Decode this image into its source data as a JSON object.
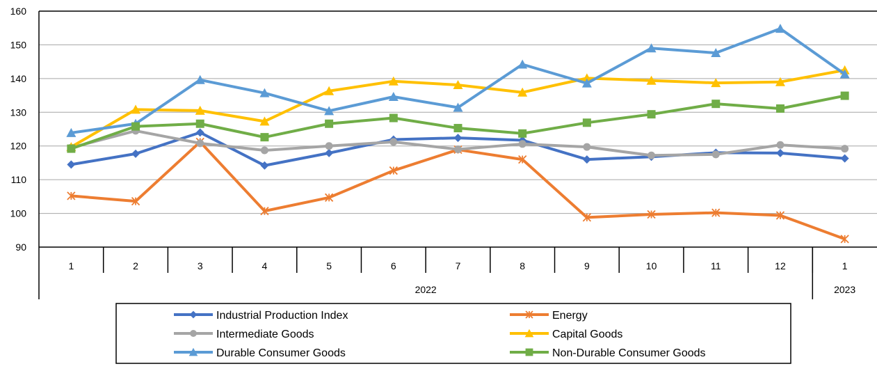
{
  "chart_data": {
    "type": "line",
    "categories": [
      "1",
      "2",
      "3",
      "4",
      "5",
      "6",
      "7",
      "8",
      "9",
      "10",
      "11",
      "12",
      "1"
    ],
    "year_groups": [
      {
        "label": "2022",
        "count": 12
      },
      {
        "label": "2023",
        "count": 1
      }
    ],
    "ylim": [
      90,
      160
    ],
    "yticks": [
      90,
      100,
      110,
      120,
      130,
      140,
      150,
      160
    ],
    "grid": true,
    "legend_position": "bottom",
    "series": [
      {
        "name": "Industrial Production Index",
        "color": "#4472C4",
        "marker": "diamond",
        "values": [
          114.5,
          117.7,
          124.0,
          114.2,
          117.9,
          121.9,
          122.4,
          121.7,
          116.0,
          116.8,
          118.0,
          117.9,
          116.3
        ]
      },
      {
        "name": "Energy",
        "color": "#ED7D31",
        "marker": "star",
        "values": [
          105.2,
          103.6,
          121.2,
          100.7,
          104.7,
          112.7,
          118.9,
          116.0,
          98.8,
          99.7,
          100.2,
          99.4,
          92.4
        ]
      },
      {
        "name": "Intermediate Goods",
        "color": "#A5A5A5",
        "marker": "circle",
        "values": [
          119.5,
          124.5,
          120.8,
          118.7,
          120.0,
          121.2,
          119.0,
          120.6,
          119.7,
          117.2,
          117.5,
          120.3,
          119.2
        ]
      },
      {
        "name": "Capital Goods",
        "color": "#FFC000",
        "marker": "triangle",
        "values": [
          119.7,
          130.8,
          130.5,
          127.3,
          136.3,
          139.2,
          138.1,
          135.9,
          140.1,
          139.4,
          138.7,
          139.0,
          142.5
        ]
      },
      {
        "name": "Durable Consumer Goods",
        "color": "#5B9BD5",
        "marker": "triangle",
        "values": [
          123.9,
          126.6,
          139.6,
          135.7,
          130.4,
          134.6,
          131.4,
          144.2,
          138.6,
          149.0,
          147.6,
          154.8,
          141.3
        ]
      },
      {
        "name": "Non-Durable Consumer Goods",
        "color": "#70AD47",
        "marker": "square",
        "values": [
          119.2,
          125.8,
          126.6,
          122.6,
          126.6,
          128.3,
          125.3,
          123.7,
          126.9,
          129.4,
          132.5,
          131.1,
          134.9
        ]
      }
    ]
  }
}
